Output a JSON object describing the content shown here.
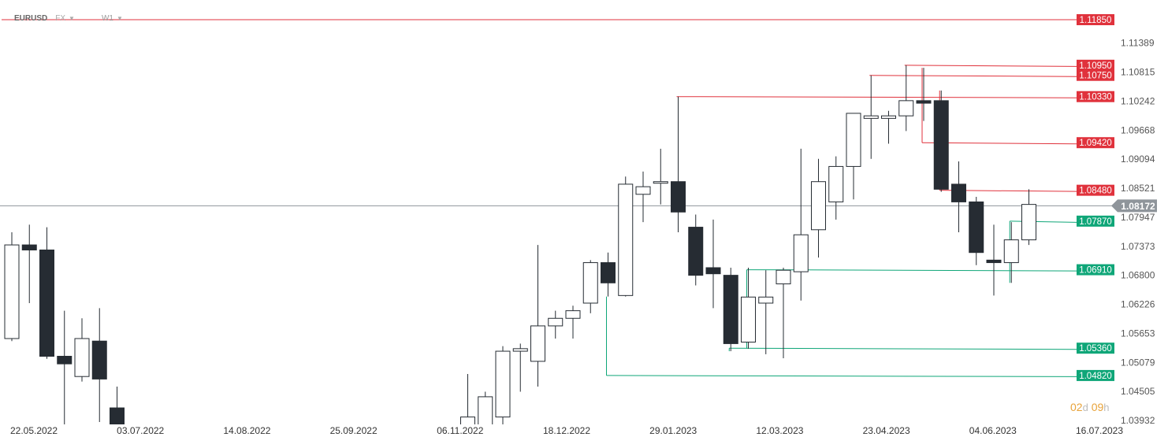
{
  "header": {
    "symbol": "EURUSD",
    "market": "FX",
    "timeframe": "W1"
  },
  "countdown": {
    "days": "02",
    "day_unit": "d",
    "hours": "09",
    "hour_unit": "h"
  },
  "colors": {
    "bull_fill": "#ffffff",
    "bear_fill": "#262c33",
    "candle_stroke": "#262c33",
    "resistance": "#e0323c",
    "support": "#0fa678",
    "current_price": "#8f959b"
  },
  "chart_data": {
    "type": "candlestick",
    "title": "",
    "y_range": [
      1.03932,
      1.1185
    ],
    "y_ticks": [
      "1.11389",
      "1.10815",
      "1.10242",
      "1.09668",
      "1.09094",
      "1.08521",
      "1.07947",
      "1.07373",
      "1.06800",
      "1.06226",
      "1.05653",
      "1.05079",
      "1.04505",
      "1.03932"
    ],
    "x_ticks": [
      "22.05.2022",
      "03.07.2022",
      "14.08.2022",
      "25.09.2022",
      "06.11.2022",
      "18.12.2022",
      "29.01.2023",
      "12.03.2023",
      "23.04.2023",
      "04.06.2023",
      "16.07.2023"
    ],
    "first_week": "2022-05-23",
    "current_price": {
      "value": 1.08172,
      "label": "1.08172"
    },
    "candles": [
      {
        "w": 0,
        "o": 1.0555,
        "h": 1.0765,
        "l": 1.055,
        "c": 1.074
      },
      {
        "w": 1,
        "o": 1.074,
        "h": 1.078,
        "l": 1.0625,
        "c": 1.073
      },
      {
        "w": 2,
        "o": 1.073,
        "h": 1.0775,
        "l": 1.0515,
        "c": 1.052
      },
      {
        "w": 3,
        "o": 1.052,
        "h": 1.061,
        "l": 1.0365,
        "c": 1.0505
      },
      {
        "w": 4,
        "o": 1.048,
        "h": 1.0595,
        "l": 1.047,
        "c": 1.0555
      },
      {
        "w": 5,
        "o": 1.055,
        "h": 1.0615,
        "l": 1.039,
        "c": 1.0475
      },
      {
        "w": 6,
        "o": 1.0418,
        "h": 1.046,
        "l": 1.0278,
        "c": 1.0325
      },
      {
        "w": 26,
        "o": 1.036,
        "h": 1.0485,
        "l": 1.033,
        "c": 1.04
      },
      {
        "w": 27,
        "o": 1.037,
        "h": 1.045,
        "l": 1.022,
        "c": 1.044
      },
      {
        "w": 28,
        "o": 1.04,
        "h": 1.054,
        "l": 1.03,
        "c": 1.053
      },
      {
        "w": 29,
        "o": 1.053,
        "h": 1.0545,
        "l": 1.045,
        "c": 1.0535
      },
      {
        "w": 30,
        "o": 1.051,
        "h": 1.074,
        "l": 1.046,
        "c": 1.058
      },
      {
        "w": 31,
        "o": 1.058,
        "h": 1.061,
        "l": 1.0555,
        "c": 1.0595
      },
      {
        "w": 32,
        "o": 1.0595,
        "h": 1.062,
        "l": 1.0555,
        "c": 1.061
      },
      {
        "w": 33,
        "o": 1.0625,
        "h": 1.071,
        "l": 1.0605,
        "c": 1.0705
      },
      {
        "w": 34,
        "o": 1.0705,
        "h": 1.0725,
        "l": 1.0638,
        "c": 1.0665
      },
      {
        "w": 35,
        "o": 1.064,
        "h": 1.0875,
        "l": 1.0638,
        "c": 1.086
      },
      {
        "w": 36,
        "o": 1.084,
        "h": 1.0885,
        "l": 1.0785,
        "c": 1.0855
      },
      {
        "w": 37,
        "o": 1.0865,
        "h": 1.093,
        "l": 1.082,
        "c": 1.0865
      },
      {
        "w": 38,
        "o": 1.0865,
        "h": 1.1033,
        "l": 1.0765,
        "c": 1.0805
      },
      {
        "w": 39,
        "o": 1.0775,
        "h": 1.08,
        "l": 1.066,
        "c": 1.068
      },
      {
        "w": 40,
        "o": 1.0695,
        "h": 1.079,
        "l": 1.0615,
        "c": 1.0683
      },
      {
        "w": 41,
        "o": 1.068,
        "h": 1.0695,
        "l": 1.053,
        "c": 1.0545
      },
      {
        "w": 42,
        "o": 1.0548,
        "h": 1.0695,
        "l": 1.0535,
        "c": 1.0637
      },
      {
        "w": 43,
        "o": 1.0625,
        "h": 1.069,
        "l": 1.0524,
        "c": 1.0637
      },
      {
        "w": 44,
        "o": 1.0663,
        "h": 1.0695,
        "l": 1.0516,
        "c": 1.069
      },
      {
        "w": 45,
        "o": 1.0687,
        "h": 1.093,
        "l": 1.063,
        "c": 1.076
      },
      {
        "w": 46,
        "o": 1.077,
        "h": 1.091,
        "l": 1.0715,
        "c": 1.0865
      },
      {
        "w": 47,
        "o": 1.0825,
        "h": 1.0915,
        "l": 1.079,
        "c": 1.0895
      },
      {
        "w": 48,
        "o": 1.0895,
        "h": 1.1,
        "l": 1.083,
        "c": 1.1
      },
      {
        "w": 49,
        "o": 1.099,
        "h": 1.1075,
        "l": 1.091,
        "c": 1.0995
      },
      {
        "w": 50,
        "o": 1.099,
        "h": 1.1005,
        "l": 1.094,
        "c": 1.0995
      },
      {
        "w": 51,
        "o": 1.0995,
        "h": 1.1095,
        "l": 1.0965,
        "c": 1.1025
      },
      {
        "w": 52,
        "o": 1.1025,
        "h": 1.109,
        "l": 1.0985,
        "c": 1.102
      },
      {
        "w": 53,
        "o": 1.1025,
        "h": 1.1045,
        "l": 1.0845,
        "c": 1.085
      },
      {
        "w": 54,
        "o": 1.086,
        "h": 1.0905,
        "l": 1.0765,
        "c": 1.0825
      },
      {
        "w": 55,
        "o": 1.0825,
        "h": 1.0835,
        "l": 1.07,
        "c": 1.0725
      },
      {
        "w": 56,
        "o": 1.071,
        "h": 1.078,
        "l": 1.064,
        "c": 1.0705
      },
      {
        "w": 57,
        "o": 1.0705,
        "h": 1.0785,
        "l": 1.0665,
        "c": 1.075
      },
      {
        "w": 58,
        "o": 1.075,
        "h": 1.085,
        "l": 1.074,
        "c": 1.082
      }
    ],
    "levels": [
      {
        "label": "1.11850",
        "value": 1.1185,
        "kind": "resistance",
        "from_week": -1
      },
      {
        "label": "1.10950",
        "value": 1.1095,
        "kind": "resistance",
        "from_week": 51
      },
      {
        "label": "1.10750",
        "value": 1.1075,
        "kind": "resistance",
        "from_week": 49
      },
      {
        "label": "1.10330",
        "value": 1.1033,
        "kind": "resistance",
        "from_week": 38
      },
      {
        "label": "1.09420",
        "value": 1.0942,
        "kind": "resistance",
        "from_week": 52
      },
      {
        "label": "1.08480",
        "value": 1.0848,
        "kind": "resistance",
        "from_week": 53
      },
      {
        "label": "1.07870",
        "value": 1.0787,
        "kind": "support",
        "from_week": 57
      },
      {
        "label": "1.06910",
        "value": 1.0691,
        "kind": "support",
        "from_week": 42
      },
      {
        "label": "1.05360",
        "value": 1.0536,
        "kind": "support",
        "from_week": 41
      },
      {
        "label": "1.04820",
        "value": 1.0482,
        "kind": "support",
        "from_week": 34
      }
    ]
  }
}
